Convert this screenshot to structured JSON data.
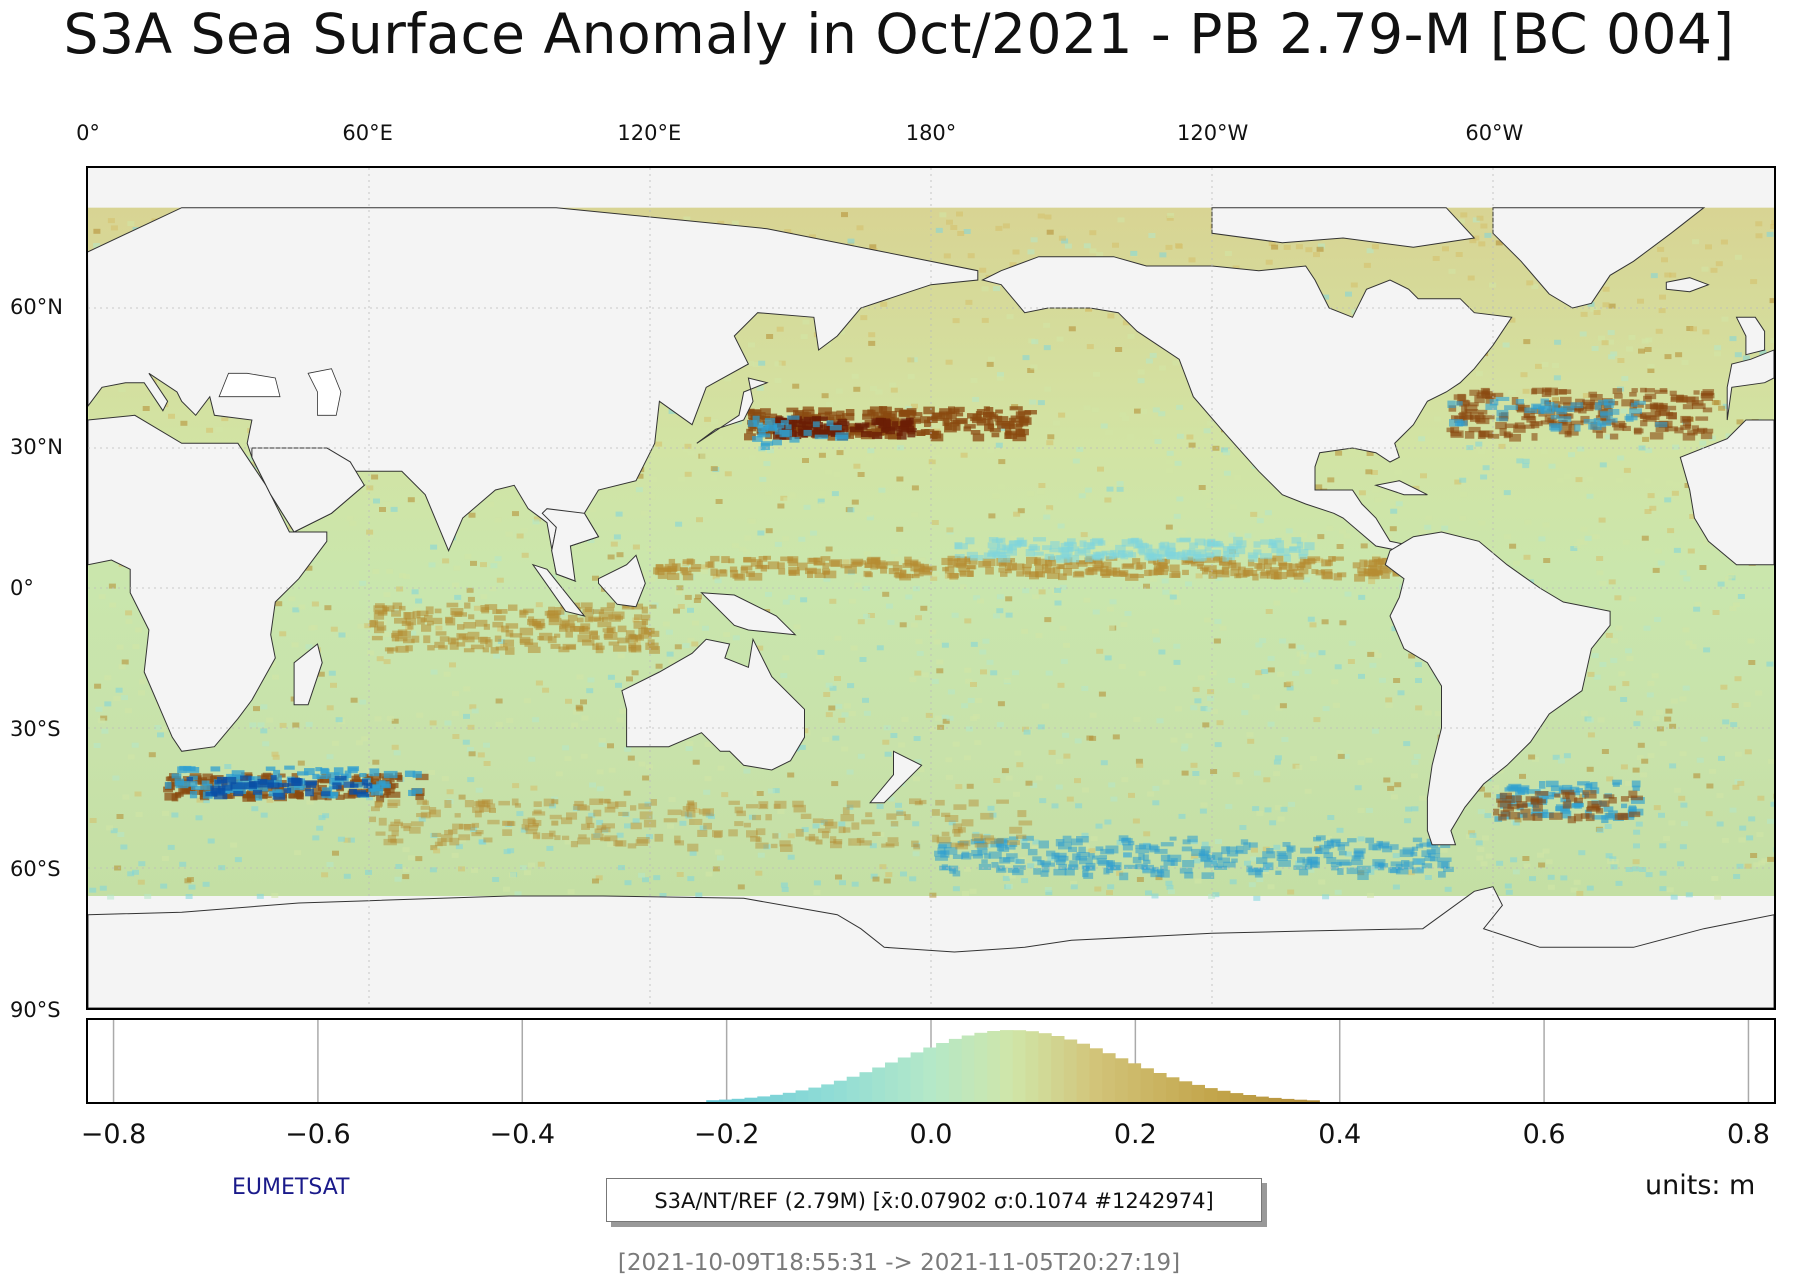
{
  "title": "S3A Sea Surface Anomaly in Oct/2021 - PB 2.79-M [BC 004]",
  "map": {
    "lon_labels": [
      "0°",
      "60°E",
      "120°E",
      "180°",
      "120°W",
      "60°W"
    ],
    "lon_values": [
      0,
      60,
      120,
      180,
      240,
      300
    ],
    "lat_labels": [
      "60°N",
      "30°N",
      "0°",
      "30°S",
      "60°S",
      "90°S"
    ],
    "lat_values": [
      60,
      30,
      0,
      -30,
      -60,
      -90
    ],
    "lon_range": [
      0,
      360
    ],
    "lat_range": [
      -90,
      90
    ],
    "land_color": "#f4f4f4",
    "colormap": [
      "#0a4fa6",
      "#2f9fd0",
      "#7fd6dc",
      "#b4e8c8",
      "#d2e6a6",
      "#d6c06a",
      "#b58c32",
      "#8a4a10",
      "#6b1e05"
    ]
  },
  "histogram": {
    "x_ticks": [
      "−0.8",
      "−0.6",
      "−0.4",
      "−0.2",
      "0.0",
      "0.2",
      "0.4",
      "0.6",
      "0.8"
    ],
    "x_values": [
      -0.8,
      -0.6,
      -0.4,
      -0.2,
      0.0,
      0.2,
      0.4,
      0.6,
      0.8
    ],
    "xlim": [
      -0.825,
      0.825
    ],
    "mean": 0.07902,
    "sigma": 0.1074,
    "count": 1242974,
    "bar_range": [
      -0.22,
      0.38
    ]
  },
  "branding": "EUMETSAT",
  "units": "units: m",
  "stats_label": "S3A/NT/REF (2.79M) [x̄:0.07902 σ:0.1074 #1242974]",
  "date_range": "[2021-10-09T18:55:31 -> 2021-11-05T20:27:19]"
}
